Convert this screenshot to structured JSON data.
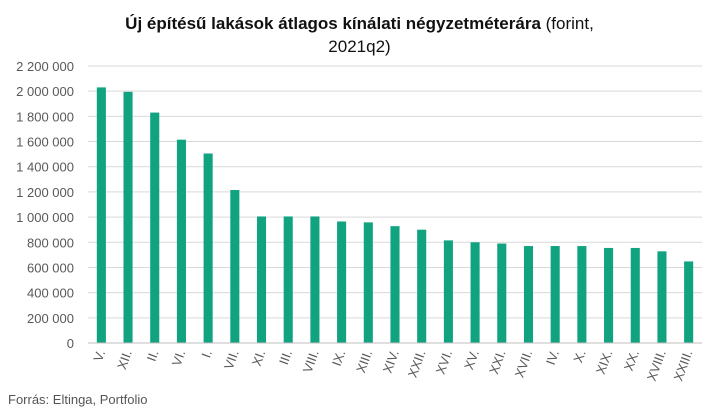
{
  "title_bold": "Új építésű lakások átlagos kínálati négyzetméterára",
  "title_normal": " (forint,",
  "title_line2": "2021q2)",
  "source": "Forrás: Eltinga, Portfolio",
  "colors": {
    "bar": "#11a37f",
    "grid": "#d9d9d9",
    "axis": "#bfbfbf",
    "text": "#595959"
  },
  "chart_data": {
    "type": "bar",
    "title": "Új építésű lakások átlagos kínálati négyzetméterára (forint, 2021q2)",
    "xlabel": "",
    "ylabel": "",
    "ylim": [
      0,
      2200000
    ],
    "yticks": [
      0,
      200000,
      400000,
      600000,
      800000,
      1000000,
      1200000,
      1400000,
      1600000,
      1800000,
      2000000,
      2200000
    ],
    "ytick_labels": [
      "0",
      "200 000",
      "400 000",
      "600 000",
      "800 000",
      "1 000 000",
      "1 200 000",
      "1 400 000",
      "1 600 000",
      "1 800 000",
      "2 000 000",
      "2 200 000"
    ],
    "grid": true,
    "categories": [
      "V.",
      "XII.",
      "II.",
      "VI.",
      "I.",
      "VII.",
      "XI.",
      "III.",
      "VIII.",
      "IX.",
      "XIII.",
      "XIV.",
      "XXII.",
      "XVI.",
      "XV.",
      "XXI.",
      "XVII.",
      "IV.",
      "X.",
      "XIX.",
      "XX.",
      "XVIII.",
      "XXIII."
    ],
    "values": [
      2030000,
      1995000,
      1830000,
      1615000,
      1505000,
      1215000,
      1005000,
      1005000,
      1005000,
      965000,
      958000,
      928000,
      900000,
      815000,
      800000,
      790000,
      770000,
      770000,
      770000,
      755000,
      755000,
      728000,
      648000
    ]
  }
}
